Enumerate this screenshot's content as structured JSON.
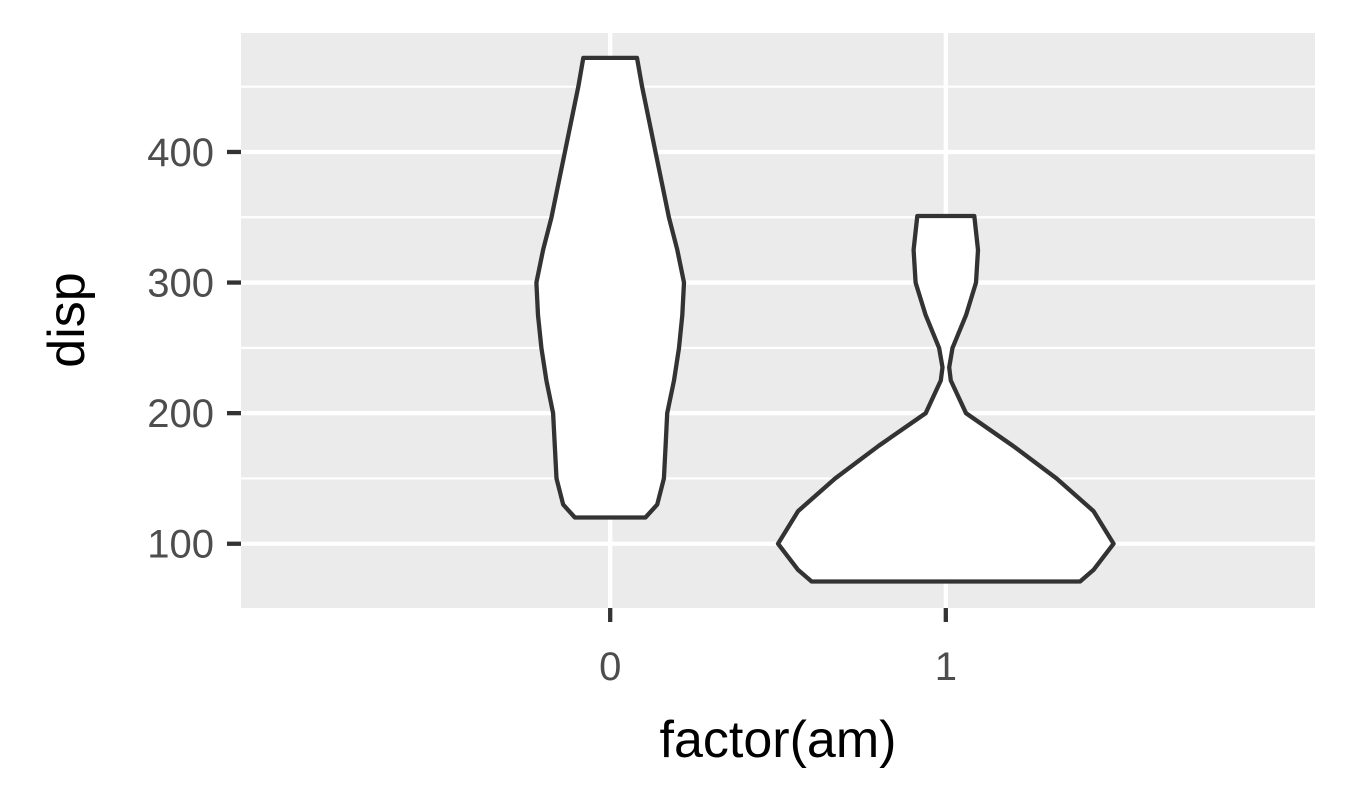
{
  "chart_data": {
    "type": "violin",
    "title": "",
    "xlabel": "factor(am)",
    "ylabel": "disp",
    "categories": [
      "0",
      "1"
    ],
    "ylim": [
      50.8,
      491.1
    ],
    "y_ticks": [
      100,
      200,
      300,
      400
    ],
    "y_minor_ticks": [
      150,
      250,
      350,
      450
    ],
    "grid": true,
    "panel_background": "#ebebeb",
    "grid_color": "#ffffff",
    "violin_fill": "#ffffff",
    "violin_outline": "#333333",
    "series": [
      {
        "category": "0",
        "range": [
          120.1,
          472.0
        ],
        "density_profile": [
          [
            120.1,
            0.105
          ],
          [
            130,
            0.14
          ],
          [
            150,
            0.16
          ],
          [
            175,
            0.165
          ],
          [
            200,
            0.17
          ],
          [
            225,
            0.19
          ],
          [
            250,
            0.205
          ],
          [
            275,
            0.215
          ],
          [
            300,
            0.22
          ],
          [
            325,
            0.2
          ],
          [
            350,
            0.175
          ],
          [
            375,
            0.155
          ],
          [
            400,
            0.135
          ],
          [
            425,
            0.115
          ],
          [
            450,
            0.095
          ],
          [
            472.0,
            0.08
          ]
        ]
      },
      {
        "category": "1",
        "range": [
          71.1,
          351.0
        ],
        "density_profile": [
          [
            71.1,
            0.4
          ],
          [
            80,
            0.44
          ],
          [
            100,
            0.5
          ],
          [
            125,
            0.44
          ],
          [
            150,
            0.33
          ],
          [
            175,
            0.2
          ],
          [
            200,
            0.06
          ],
          [
            225,
            0.015
          ],
          [
            235,
            0.01
          ],
          [
            250,
            0.02
          ],
          [
            275,
            0.06
          ],
          [
            300,
            0.09
          ],
          [
            325,
            0.096
          ],
          [
            351.0,
            0.085
          ]
        ]
      }
    ]
  }
}
